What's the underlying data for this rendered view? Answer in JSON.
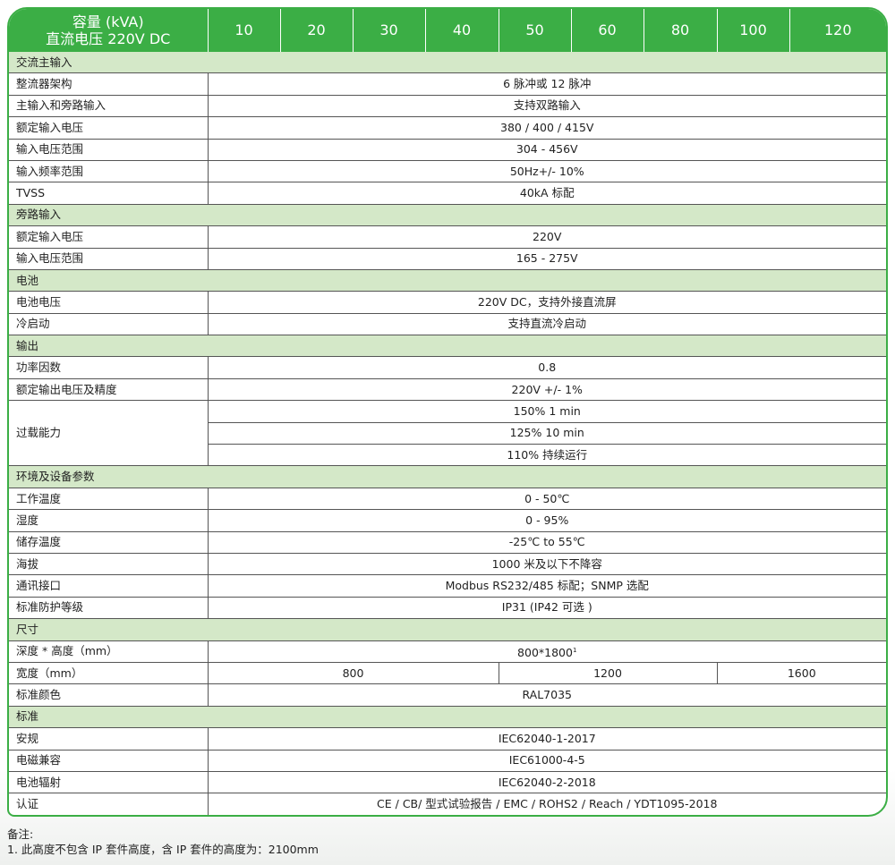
{
  "header": {
    "title_line1": "容量 (kVA)",
    "title_line2": "直流电压 220V DC",
    "capacities": [
      "10",
      "20",
      "30",
      "40",
      "50",
      "60",
      "80",
      "100",
      "120"
    ]
  },
  "colors": {
    "header_green": "#3bae45",
    "section_green": "#d4e8c8"
  },
  "sections": [
    {
      "title": "交流主输入",
      "rows": [
        {
          "label": "整流器架构",
          "value": "6 脉冲或 12 脉冲"
        },
        {
          "label": "主输入和旁路输入",
          "value": "支持双路输入"
        },
        {
          "label": "额定输入电压",
          "value": "380 / 400 / 415V"
        },
        {
          "label": "输入电压范围",
          "value": "304 - 456V"
        },
        {
          "label": "输入频率范围",
          "value": "50Hz+/- 10%"
        },
        {
          "label": "TVSS",
          "value": "40kA 标配"
        }
      ]
    },
    {
      "title": "旁路输入",
      "rows": [
        {
          "label": "额定输入电压",
          "value": "220V"
        },
        {
          "label": "输入电压范围",
          "value": "165 - 275V"
        }
      ]
    },
    {
      "title": "电池",
      "rows": [
        {
          "label": "电池电压",
          "value": "220V DC，支持外接直流屏"
        },
        {
          "label": "冷启动",
          "value": "支持直流冷启动"
        }
      ]
    },
    {
      "title": "输出",
      "rows": [
        {
          "label": "功率因数",
          "value": "0.8"
        },
        {
          "label": "额定输出电压及精度",
          "value": "220V +/- 1%"
        },
        {
          "label": "过载能力",
          "values": [
            "150% 1 min",
            "125% 10 min",
            "110% 持续运行"
          ]
        }
      ]
    },
    {
      "title": "环境及设备参数",
      "rows": [
        {
          "label": "工作温度",
          "value": "0 - 50℃"
        },
        {
          "label": "湿度",
          "value": "0 - 95%"
        },
        {
          "label": "储存温度",
          "value": "-25℃ to 55℃"
        },
        {
          "label": "海拔",
          "value": "1000 米及以下不降容"
        },
        {
          "label": "通讯接口",
          "value": "Modbus RS232/485 标配；SNMP 选配"
        },
        {
          "label": "标准防护等级",
          "value": "IP31 (IP42 可选 )"
        }
      ]
    },
    {
      "title": "尺寸",
      "rows": [
        {
          "label": "深度 * 高度（mm）",
          "value": "800*1800",
          "sup": "1"
        },
        {
          "label": "宽度（mm）",
          "split": [
            {
              "value": "800",
              "span": 4
            },
            {
              "value": "1200",
              "span": 3
            },
            {
              "value": "1600",
              "span": 2
            }
          ]
        },
        {
          "label": "标准颜色",
          "value": "RAL7035"
        }
      ]
    },
    {
      "title": "标准",
      "rows": [
        {
          "label": "安规",
          "value": "IEC62040-1-2017"
        },
        {
          "label": "电磁兼容",
          "value": "IEC61000-4-5"
        },
        {
          "label": "电池辐射",
          "value": "IEC62040-2-2018"
        },
        {
          "label": "认证",
          "value": "CE / CB/ 型式试验报告 / EMC / ROHS2 / Reach / YDT1095-2018"
        }
      ]
    }
  ],
  "notes": {
    "title": "备注:",
    "items": [
      "1. 此高度不包含 IP 套件高度，含 IP 套件的高度为：2100mm"
    ]
  }
}
